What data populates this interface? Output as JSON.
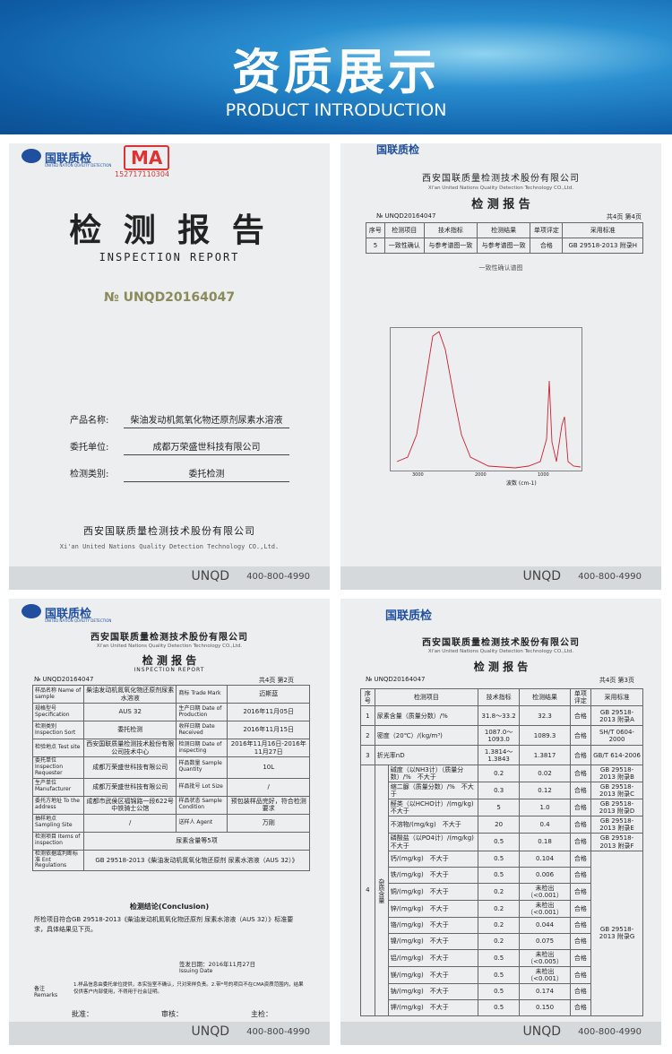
{
  "header": {
    "title": "资质展示",
    "subtitle": "PRODUCT INTRODUCTION"
  },
  "doc1": {
    "brand": "国联质检",
    "brand_en": "UNITED NATION QUALITY DETECTION",
    "stamp": "MA",
    "stamp_no": "152717110304",
    "title": "检 测 报 告",
    "title_en": "INSPECTION REPORT",
    "number": "№ UNQD20164047",
    "fields": [
      {
        "label": "产品名称:",
        "value": "柴油发动机氮氧化物还原剂尿素水溶液"
      },
      {
        "label": "委托单位:",
        "value": "成都万荣盛世科技有限公司"
      },
      {
        "label": "检测类别:",
        "value": "委托检测"
      }
    ],
    "company": "西安国联质量检测技术股份有限公司",
    "company_en": "Xi'an United Nations Quality Detection Technology CO.,Ltd.",
    "footer": "UNQD",
    "phone": "400-800-4990"
  },
  "doc2": {
    "brand": "国联质检",
    "company": "西安国联质量检测技术股份有限公司",
    "company_en": "Xi'an United Nations Quality Detection Technology CO.,Ltd.",
    "title": "检 测 报 告",
    "number": "№ UNQD20164047",
    "page": "共4页 第4页",
    "header": [
      "序号",
      "检测项目",
      "技术指标",
      "检测结果",
      "单项评定",
      "采用标准"
    ],
    "row": [
      "5",
      "一致性确认",
      "与参考谱图一致",
      "与参考谱图一致",
      "合格",
      "GB 29518-2013 附录H"
    ],
    "caption": "一致性确认谱图",
    "xticks": [
      "3000",
      "2000",
      "1000"
    ],
    "xlabel": "波数 (cm-1)",
    "footer": "UNQD",
    "phone": "400-800-4990"
  },
  "doc3": {
    "brand": "国联质检",
    "brand_en": "UNITED NATION QUALITY DETECTION",
    "company": "西安国联质量检测技术股份有限公司",
    "company_en": "Xi'an United Nations Quality Detection Technology CO.,Ltd.",
    "title": "检 测 报 告",
    "title_en": "INSPECTION REPORT",
    "number": "№ UNQD20164047",
    "page": "共4页 第2页",
    "rows": [
      [
        "样品名称 Name of sample",
        "柴油发动机氮氧化物还原剂尿素水溶液",
        "商标 Trade Mark",
        "迈斯蓝"
      ],
      [
        "规格型号 Specification",
        "AUS 32",
        "生产日期 Date of Production",
        "2016年11月05日"
      ],
      [
        "检测类别 Inspection Sort",
        "委托检测",
        "收样日期 Date Received",
        "2016年11月15日"
      ],
      [
        "检验地点 Test site",
        "西安国联质量检测技术股份有限公司技术中心",
        "检测日期 Date of inspecting",
        "2016年11月16日-2016年11月27日"
      ],
      [
        "委托单位 Inspection Requester",
        "成都万荣盛世科技有限公司",
        "样品数量 Sample Quantity",
        "10L"
      ],
      [
        "生产单位 Manufacturer",
        "成都万荣盛世科技有限公司",
        "样品批号 Lot Size",
        "/"
      ],
      [
        "委托方地址 To the address",
        "成都市武侯区福锦路一段622号中铁骑士公馆",
        "样品状态 Sample Condition",
        "预包装样品完好，符合检测要求"
      ],
      [
        "抽样地点 Sampling Site",
        "/",
        "送样人 Agent",
        "万刚"
      ],
      [
        "检测项目 Items of inspection",
        "尿素含量等5项"
      ],
      [
        "检测依据或判断标准 Ent Regulations",
        "GB 29518-2013《柴油发动机氮氧化物还原剂 尿素水溶液（AUS 32）》"
      ]
    ],
    "conclusion_title": "检测结论(Conclusion)",
    "conclusion": "所检项目符合GB 29518-2013《柴油发动机氮氧化物还原剂 尿素水溶液（AUS 32）》标准要求，具体结果见下页。",
    "issue_date": "签发日期：2016年11月27日",
    "issue_en": "Issuing Date",
    "remarks_label": "备注 Remarks",
    "remarks": "1.样品信息由委托单位提供，本实验室不确认，只对来样负责。2.带*号的项目不在CMA资质范围内，结果仅供客户内部使用，不得用于社会证明。",
    "signs": [
      "批准：",
      "审核：",
      "主检："
    ],
    "footer": "UNQD",
    "phone": "400-800-4990"
  },
  "doc4": {
    "brand": "国联质检",
    "company": "西安国联质量检测技术股份有限公司",
    "company_en": "Xi'an United Nations Quality Detection Technology CO.,Ltd.",
    "title": "检 测 报 告",
    "number": "№ UNQD20164047",
    "page": "共4页 第3页",
    "header": [
      "序号",
      "检测项目",
      "技术指标",
      "检测结果",
      "单项评定",
      "采用标准"
    ],
    "rows": [
      [
        "1",
        "尿素含量（质量分数）/%",
        "31.8～33.2",
        "32.3",
        "合格",
        "GB 29518-2013 附录A"
      ],
      [
        "2",
        "密度（20℃）/(kg/m³)",
        "1087.0～1093.0",
        "1089.3",
        "合格",
        "SH/T 0604-2000"
      ],
      [
        "3",
        "折光率nD",
        "1.3814～1.3843",
        "1.3817",
        "合格",
        "GB/T 614-2006"
      ]
    ],
    "group_no": "4",
    "group": "杂质含量",
    "items": [
      [
        "碱度（以NH3计）（质量分数）/%　不大于",
        "0.2",
        "0.02",
        "合格",
        "GB 29518-2013 附录B"
      ],
      [
        "缩二脲（质量分数）/%　不大于",
        "0.3",
        "0.12",
        "合格",
        "GB 29518-2013 附录C"
      ],
      [
        "醛类（以HCHO计）/(mg/kg)　不大于",
        "5",
        "1.0",
        "合格",
        "GB 29518-2013 附录D"
      ],
      [
        "不溶物/(mg/kg)　不大于",
        "20",
        "0.4",
        "合格",
        "GB 29518-2013 附录E"
      ],
      [
        "磷酸盐（以PO4计）/(mg/kg)　不大于",
        "0.5",
        "0.18",
        "合格",
        "GB 29518-2013 附录F"
      ]
    ],
    "metals": [
      [
        "钙/(mg/kg)　不大于",
        "0.5",
        "0.104",
        "合格"
      ],
      [
        "铁/(mg/kg)　不大于",
        "0.5",
        "0.006",
        "合格"
      ],
      [
        "铜/(mg/kg)　不大于",
        "0.2",
        "未检出（<0.001）",
        "合格"
      ],
      [
        "锌/(mg/kg)　不大于",
        "0.2",
        "未检出（<0.001）",
        "合格"
      ],
      [
        "铬/(mg/kg)　不大于",
        "0.2",
        "0.044",
        "合格"
      ],
      [
        "镍/(mg/kg)　不大于",
        "0.2",
        "0.075",
        "合格"
      ],
      [
        "铝/(mg/kg)　不大于",
        "0.5",
        "未检出（<0.005）",
        "合格"
      ],
      [
        "镁/(mg/kg)　不大于",
        "0.5",
        "未检出（<0.001）",
        "合格"
      ],
      [
        "钠/(mg/kg)　不大于",
        "0.5",
        "0.174",
        "合格"
      ],
      [
        "钾/(mg/kg)　不大于",
        "0.5",
        "0.150",
        "合格"
      ]
    ],
    "metals_standard": "GB 29518-2013 附录G",
    "footer": "UNQD",
    "phone": "400-800-4990"
  }
}
